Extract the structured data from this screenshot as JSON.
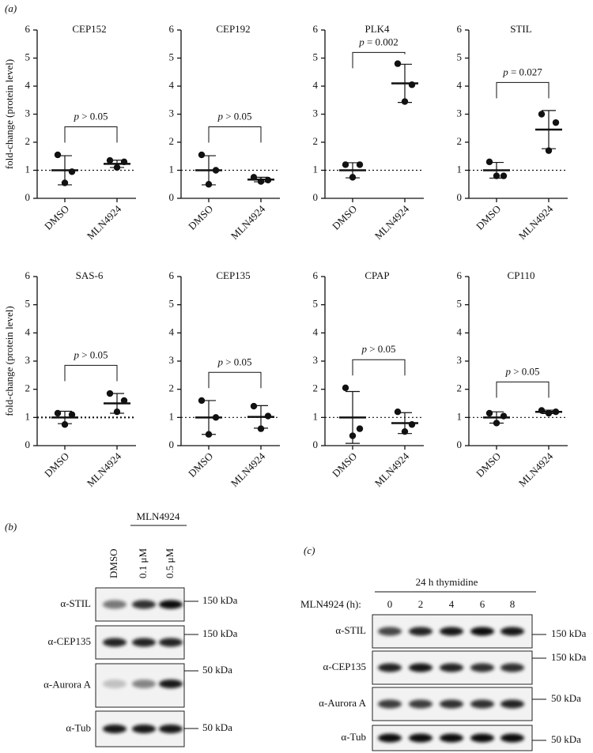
{
  "panel_a": {
    "label": "(a)"
  },
  "chart_data": [
    {
      "type": "scatter",
      "title": "CEP152",
      "ylabel": "fold-change (protein level)",
      "categories": [
        "DMSO",
        "MLN4924"
      ],
      "values": [
        [
          1.55,
          0.55,
          0.95
        ],
        [
          1.35,
          1.1,
          1.3
        ]
      ],
      "means": [
        1.0,
        1.23
      ],
      "errors": [
        0.52,
        0.13
      ],
      "refline": 1,
      "annotation": "p > 0.05",
      "ylim": [
        0,
        6
      ],
      "yticks": [
        0,
        1,
        2,
        3,
        4,
        5,
        6
      ]
    },
    {
      "type": "scatter",
      "title": "CEP192",
      "categories": [
        "DMSO",
        "MLN4924"
      ],
      "values": [
        [
          1.55,
          0.5,
          1.0
        ],
        [
          0.75,
          0.6,
          0.65
        ]
      ],
      "means": [
        1.0,
        0.67
      ],
      "errors": [
        0.52,
        0.08
      ],
      "refline": 1,
      "annotation": "p > 0.05",
      "ylim": [
        0,
        6
      ],
      "yticks": [
        0,
        1,
        2,
        3,
        4,
        5,
        6
      ]
    },
    {
      "type": "scatter",
      "title": "PLK4",
      "categories": [
        "DMSO",
        "MLN4924"
      ],
      "values": [
        [
          1.2,
          0.75,
          1.2
        ],
        [
          4.8,
          3.45,
          4.05
        ]
      ],
      "means": [
        1.0,
        4.1
      ],
      "errors": [
        0.27,
        0.68
      ],
      "refline": 1,
      "annotation": "p = 0.002",
      "ylim": [
        0,
        6
      ],
      "yticks": [
        0,
        1,
        2,
        3,
        4,
        5,
        6
      ]
    },
    {
      "type": "scatter",
      "title": "STIL",
      "categories": [
        "DMSO",
        "MLN4924"
      ],
      "values": [
        [
          1.3,
          0.8,
          0.8
        ],
        [
          3.0,
          1.7,
          2.7
        ]
      ],
      "means": [
        1.0,
        2.45
      ],
      "errors": [
        0.28,
        0.68
      ],
      "refline": 1,
      "annotation": "p = 0.027",
      "ylim": [
        0,
        6
      ],
      "yticks": [
        0,
        1,
        2,
        3,
        4,
        5,
        6
      ]
    },
    {
      "type": "scatter",
      "title": "SAS-6",
      "ylabel": "fold-change (protein level)",
      "categories": [
        "DMSO",
        "MLN4924"
      ],
      "values": [
        [
          1.15,
          0.75,
          1.1
        ],
        [
          1.85,
          1.2,
          1.6
        ]
      ],
      "means": [
        1.0,
        1.5
      ],
      "errors": [
        0.22,
        0.35
      ],
      "refline": 1,
      "annotation": "p > 0.05",
      "ylim": [
        0,
        6
      ],
      "yticks": [
        0,
        1,
        2,
        3,
        4,
        5,
        6
      ]
    },
    {
      "type": "scatter",
      "title": "CEP135",
      "categories": [
        "DMSO",
        "MLN4924"
      ],
      "values": [
        [
          1.6,
          0.4,
          1.0
        ],
        [
          1.4,
          0.6,
          1.05
        ]
      ],
      "means": [
        1.0,
        1.02
      ],
      "errors": [
        0.6,
        0.4
      ],
      "refline": 1,
      "annotation": "p > 0.05",
      "ylim": [
        0,
        6
      ],
      "yticks": [
        0,
        1,
        2,
        3,
        4,
        5,
        6
      ]
    },
    {
      "type": "scatter",
      "title": "CPAP",
      "categories": [
        "DMSO",
        "MLN4924"
      ],
      "values": [
        [
          2.05,
          0.35,
          0.6
        ],
        [
          1.2,
          0.5,
          0.75
        ]
      ],
      "means": [
        1.0,
        0.8
      ],
      "errors": [
        0.92,
        0.37
      ],
      "refline": 1,
      "annotation": "p > 0.05",
      "ylim": [
        0,
        6
      ],
      "yticks": [
        0,
        1,
        2,
        3,
        4,
        5,
        6
      ]
    },
    {
      "type": "scatter",
      "title": "CP110",
      "categories": [
        "DMSO",
        "MLN4924"
      ],
      "values": [
        [
          1.15,
          0.8,
          1.05
        ],
        [
          1.25,
          1.15,
          1.2
        ]
      ],
      "means": [
        1.0,
        1.2
      ],
      "errors": [
        0.2,
        0.06
      ],
      "refline": 1,
      "annotation": "p > 0.05",
      "ylim": [
        0,
        6
      ],
      "yticks": [
        0,
        1,
        2,
        3,
        4,
        5,
        6
      ]
    }
  ],
  "panel_b": {
    "label": "(b)",
    "treatment": "MLN4924",
    "lanes": [
      "DMSO",
      "0.1 μM",
      "0.5 μM"
    ],
    "rows": [
      {
        "label": "α-STIL",
        "marker": "150 kDa"
      },
      {
        "label": "α-CEP135",
        "marker": "150 kDa"
      },
      {
        "label": "α-Aurora A",
        "marker": "50 kDa"
      },
      {
        "label": "α-Tub",
        "marker": "50 kDa"
      }
    ]
  },
  "panel_c": {
    "label": "(c)",
    "condition": "24 h thymidine",
    "lane_title": "MLN4924 (h):",
    "lanes": [
      "0",
      "2",
      "4",
      "6",
      "8"
    ],
    "rows": [
      {
        "label": "α-STIL",
        "marker": "150 kDa"
      },
      {
        "label": "α-CEP135",
        "marker": "150 kDa"
      },
      {
        "label": "α-Aurora A",
        "marker": "50 kDa"
      },
      {
        "label": "α-Tub",
        "marker": "50 kDa"
      }
    ]
  }
}
